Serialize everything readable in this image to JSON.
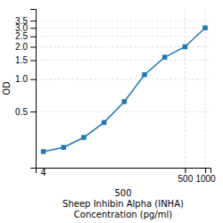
{
  "chart_data": {
    "type": "line",
    "xlabel": [
      "500",
      "Sheep Inhibin Alpha (INHA)",
      "Concentration (pg/ml)"
    ],
    "ylabel": "OD",
    "x": [
      3.9,
      7.8,
      15.6,
      31.2,
      62.5,
      125,
      250,
      500,
      1000
    ],
    "values": [
      0.212,
      0.232,
      0.287,
      0.395,
      0.618,
      1.1,
      1.6,
      2.0,
      3.0
    ],
    "marker": "square",
    "log": true,
    "grid": true,
    "xlim": [
      3,
      1200
    ],
    "ylim": [
      0.15,
      4.5
    ],
    "xticks": [
      500,
      1000
    ],
    "yticks": [
      0.5,
      {
        "value": 1.0,
        "label": "1.0"
      },
      1.5,
      {
        "value": 2.0,
        "label": "2.0"
      },
      2.5,
      {
        "value": 3.0,
        "label": "3.0"
      },
      3.5
    ],
    "annotations": [
      {
        "text": "4",
        "x": 3.9,
        "y": 0.153
      }
    ]
  }
}
